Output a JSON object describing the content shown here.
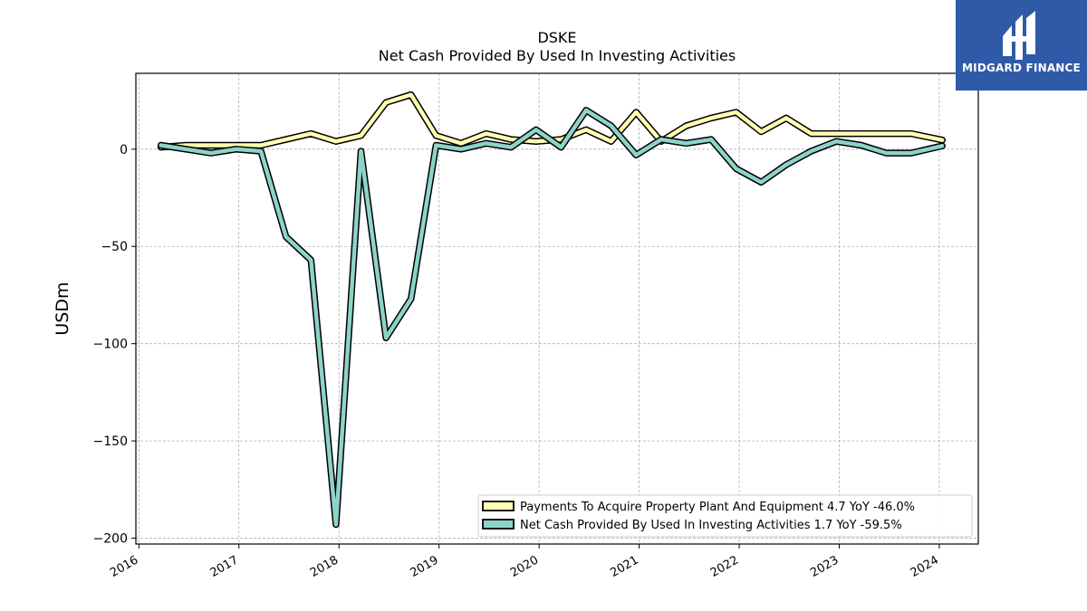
{
  "chart_data": {
    "type": "line",
    "title": "DSKE",
    "subtitle": "Net Cash Provided By Used In Investing Activities",
    "ylabel": "USDm",
    "xlabel": "",
    "xlim": [
      2015.97,
      2024.39
    ],
    "ylim": [
      -203,
      39
    ],
    "grid": true,
    "legend_position": "bottom-right",
    "x_ticks": [
      "2016",
      "2017",
      "2018",
      "2019",
      "2020",
      "2021",
      "2022",
      "2023",
      "2024"
    ],
    "y_ticks": [
      0,
      -50,
      -100,
      -150,
      -200
    ],
    "y_tick_labels": [
      "0",
      "−50",
      "−100",
      "−150",
      "−200"
    ],
    "x": [
      2016.22,
      2016.47,
      2016.72,
      2016.97,
      2017.22,
      2017.47,
      2017.72,
      2017.97,
      2018.22,
      2018.47,
      2018.72,
      2018.97,
      2019.22,
      2019.47,
      2019.72,
      2019.97,
      2020.22,
      2020.47,
      2020.72,
      2020.97,
      2021.22,
      2021.47,
      2021.72,
      2021.97,
      2022.22,
      2022.47,
      2022.72,
      2022.97,
      2023.22,
      2023.47,
      2023.72,
      2024.03
    ],
    "series": [
      {
        "name": "Payments To Acquire Property Plant And Equipment",
        "legend_label": "Payments To Acquire Property Plant And Equipment  4.7 YoY -46.0%",
        "color": "#ffffb3",
        "values": [
          1,
          2,
          2,
          2,
          2,
          5,
          8,
          4,
          7,
          24,
          28,
          7,
          3,
          8,
          5,
          4,
          5,
          10,
          4,
          19,
          4,
          12,
          16,
          19,
          9,
          16,
          8,
          8,
          8,
          8,
          8,
          4.7
        ]
      },
      {
        "name": "Net Cash Provided By Used In Investing Activities",
        "legend_label": "Net Cash Provided By Used In Investing Activities  1.7 YoY -59.5%",
        "color": "#8dd3c7",
        "values": [
          2,
          0,
          -2,
          0,
          -1,
          -45,
          -57,
          -193,
          -1,
          -97,
          -77,
          2,
          0,
          3,
          1,
          10,
          1,
          20,
          12,
          -3,
          5,
          3,
          5,
          -10,
          -17,
          -8,
          -1,
          4,
          2,
          -2,
          -2,
          1.7
        ]
      }
    ]
  },
  "logo": {
    "text": "MIDGARD FINANCE",
    "color": "#2f5aa8"
  }
}
